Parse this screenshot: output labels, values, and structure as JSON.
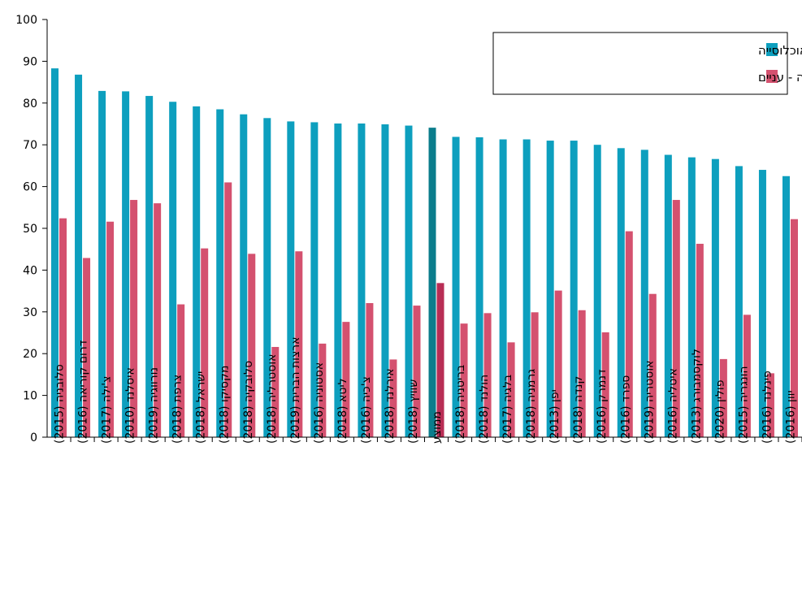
{
  "chart_data": {
    "type": "bar",
    "title": "",
    "xlabel": "",
    "ylabel": "",
    "ylim": [
      0,
      100
    ],
    "yticks": [
      0,
      10,
      20,
      30,
      40,
      50,
      60,
      70,
      80,
      90,
      100
    ],
    "grid": false,
    "legend_position": "top-right",
    "categories": [
      "סלובניה (2015)",
      "דרום קוריאה (2016)",
      "צ'ילה (2017)",
      "איסלנד (2010)",
      "נורווגיה (2019)",
      "צרפת (2018)",
      "ישראל (2018)",
      "מקסיקו (2018)",
      "סלובקיה (2018)",
      "אוסטרליה (2018)",
      "ארצות הברית (2019)",
      "אסטוניה (2016)",
      "ליטא (2018)",
      "צ'כיה (2016)",
      "אירלנד (2018)",
      "שוויץ (2018)",
      "ממוצע",
      "בריטניה (2018)",
      "הולנד (2018)",
      "בלגיה (2017)",
      "גרמניה (2018)",
      "יפן (2013)",
      "קנדה (2018)",
      "דנמרק (2016)",
      "ספרד (2016)",
      "אוסטריה (2019)",
      "איטליה (2016)",
      "לוקסמבורג (2013)",
      "פולין (2020)",
      "הונגריה (2015)",
      "פינלנד (2016)",
      "יוון (2016)"
    ],
    "highlight_category": "ממוצע",
    "series": [
      {
        "name": "ההכנסה מעבודה - כלל האוכלוסייה",
        "color": "#0d9fbe",
        "highlight_color": "#0b7d8c",
        "values": [
          88.3,
          86.8,
          82.9,
          82.8,
          81.7,
          80.3,
          79.2,
          78.5,
          77.3,
          76.4,
          75.6,
          75.4,
          75.1,
          75.1,
          74.9,
          74.6,
          74.1,
          71.9,
          71.8,
          71.3,
          71.3,
          71.0,
          71.0,
          70.0,
          69.2,
          68.8,
          67.6,
          67.0,
          66.6,
          64.9,
          64.0,
          62.5
        ]
      },
      {
        "name": "ההכנסה מעבודה - עניים",
        "color": "#d4516f",
        "highlight_color": "#b82d55",
        "values": [
          52.4,
          42.9,
          51.6,
          56.8,
          56.0,
          31.8,
          45.2,
          61.0,
          43.9,
          21.6,
          44.5,
          22.4,
          27.6,
          32.1,
          18.6,
          31.5,
          36.9,
          27.2,
          29.7,
          22.7,
          29.9,
          35.1,
          30.4,
          25.1,
          49.3,
          34.3,
          56.8,
          46.3,
          18.7,
          29.3,
          15.3,
          52.2
        ]
      }
    ]
  }
}
